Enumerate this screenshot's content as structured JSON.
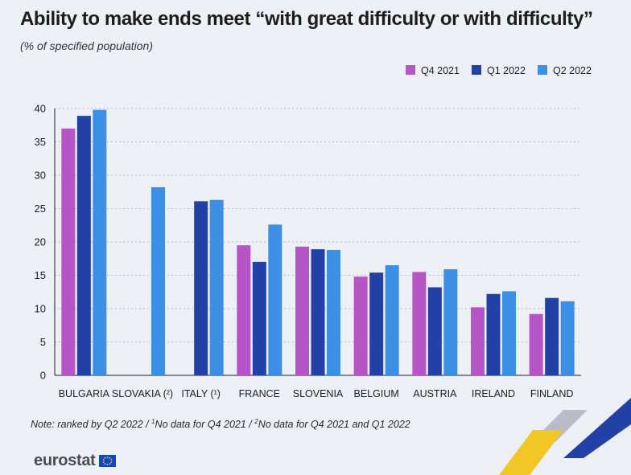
{
  "title": "Ability to make ends meet “with great difficulty or with difficulty”",
  "subtitle": "(% of specified population)",
  "footnote": {
    "part1": "Note: ranked by Q2 2022 / ",
    "sup1": "1",
    "part2": "No data for Q4 2021 / ",
    "sup2": "2",
    "part3": "No data for Q4 2021 and Q1 2022"
  },
  "logo_text": "eurostat",
  "colors": {
    "Q4 2021": "#b655c6",
    "Q1 2022": "#2241a6",
    "Q2 2022": "#3b8fe5",
    "accent_yellow": "#f2c624",
    "accent_blue": "#2241a6"
  },
  "chart_data": {
    "type": "bar",
    "categories": [
      "BULGARIA",
      "SLOVAKIA (²)",
      "ITALY (¹)",
      "FRANCE",
      "SLOVENIA",
      "BELGIUM",
      "AUSTRIA",
      "IRELAND",
      "FINLAND"
    ],
    "series": [
      {
        "name": "Q4 2021",
        "values": [
          37.0,
          null,
          null,
          19.5,
          19.3,
          14.8,
          15.5,
          10.2,
          9.2
        ]
      },
      {
        "name": "Q1 2022",
        "values": [
          38.9,
          null,
          26.1,
          17.0,
          18.9,
          15.4,
          13.2,
          12.2,
          11.6
        ]
      },
      {
        "name": "Q2 2022",
        "values": [
          39.8,
          28.2,
          26.3,
          22.6,
          18.8,
          16.5,
          15.9,
          12.6,
          11.1
        ]
      }
    ],
    "ylim": [
      0,
      40
    ],
    "yticks": [
      0,
      5,
      10,
      15,
      20,
      25,
      30,
      35,
      40
    ],
    "grid": true,
    "legend_position": "top-right"
  }
}
